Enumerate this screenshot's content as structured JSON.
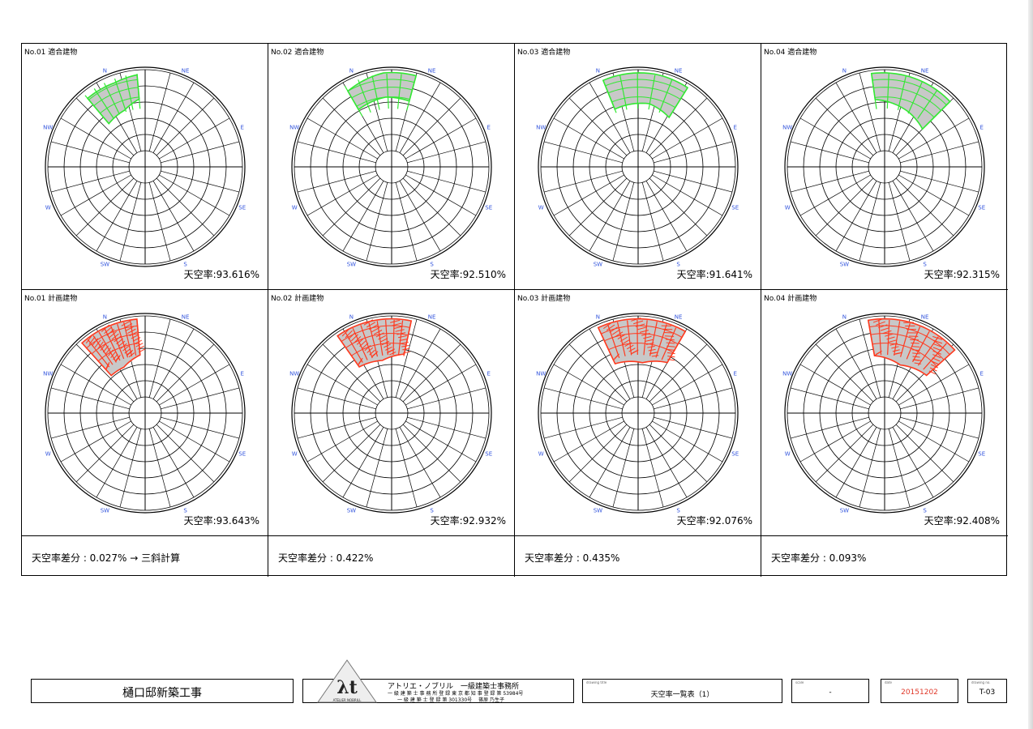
{
  "compass_labels": [
    "N",
    "NE",
    "E",
    "SE",
    "S",
    "SW",
    "W",
    "NW"
  ],
  "cells": [
    {
      "label": "No.01 適合建物",
      "ratio": "天空率:93.616%",
      "kind": "compliant",
      "color": "#33e833"
    },
    {
      "label": "No.02 適合建物",
      "ratio": "天空率:92.510%",
      "kind": "compliant",
      "color": "#33e833"
    },
    {
      "label": "No.03 適合建物",
      "ratio": "天空率:91.641%",
      "kind": "compliant",
      "color": "#33e833"
    },
    {
      "label": "No.04 適合建物",
      "ratio": "天空率:92.315%",
      "kind": "compliant",
      "color": "#33e833"
    },
    {
      "label": "No.01 計画建物",
      "ratio": "天空率:93.643%",
      "kind": "planned",
      "color": "#ff3a1f"
    },
    {
      "label": "No.02 計画建物",
      "ratio": "天空率:92.932%",
      "kind": "planned",
      "color": "#ff3a1f"
    },
    {
      "label": "No.03 計画建物",
      "ratio": "天空率:92.076%",
      "kind": "planned",
      "color": "#ff3a1f"
    },
    {
      "label": "No.04 計画建物",
      "ratio": "天空率:92.408%",
      "kind": "planned",
      "color": "#ff3a1f"
    }
  ],
  "differences": [
    "天空率差分 : 0.027% → 三斜計算",
    "天空率差分 : 0.422%",
    "天空率差分 : 0.435%",
    "天空率差分 : 0.093%"
  ],
  "title_block": {
    "project": "樋口邸新築工事",
    "firm_name": "アトリエ・ノブリル　一級建築士事務所",
    "firm_line1": "一 級 建 築 士 事 務 所 登 録 東 京 都 知 事 登 録 第 53984号",
    "firm_line2": "一 級 建 築 士 登 録  第 301330号　 篠原 乃生子",
    "logo_text": "ATELIER NOBRILL",
    "drawing_title_label": "drawing title",
    "drawing_title": "天空率一覧表（1）",
    "scale_label": "scale",
    "scale": "-",
    "date_label": "date",
    "date": "20151202",
    "drawing_no_label": "drawing no.",
    "drawing_no": "T-03"
  },
  "colors": {
    "compass_text": "#3355dd",
    "compliant": "#33e833",
    "planned": "#ff3a1f",
    "shade": "#c8c8c8"
  }
}
